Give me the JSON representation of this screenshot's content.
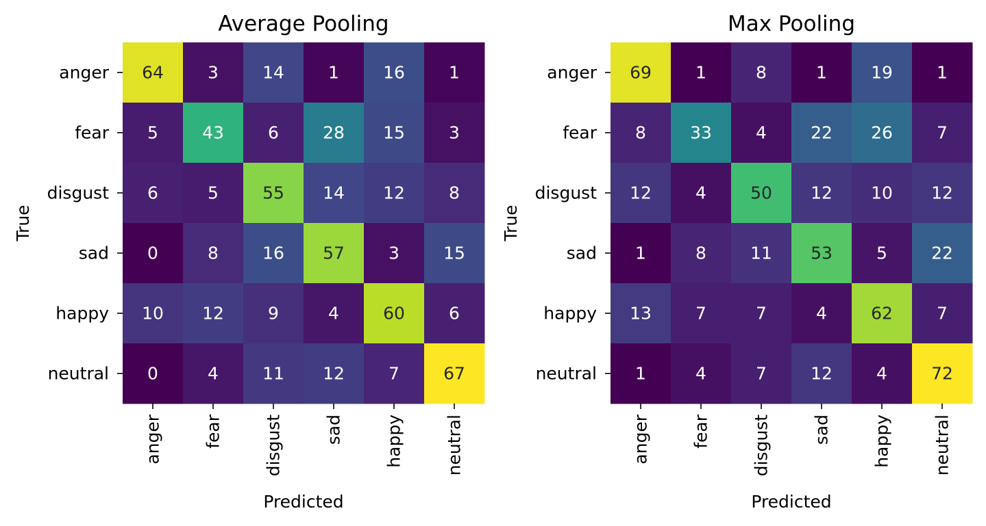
{
  "chart_data": [
    {
      "type": "heatmap",
      "title": "Average Pooling",
      "xlabel": "Predicted",
      "ylabel": "True",
      "x_categories": [
        "anger",
        "fear",
        "disgust",
        "sad",
        "happy",
        "neutral"
      ],
      "y_categories": [
        "anger",
        "fear",
        "disgust",
        "sad",
        "happy",
        "neutral"
      ],
      "colormap": "viridis",
      "color_range": [
        0,
        67
      ],
      "values": [
        [
          64,
          3,
          14,
          1,
          16,
          1
        ],
        [
          5,
          43,
          6,
          28,
          15,
          3
        ],
        [
          6,
          5,
          55,
          14,
          12,
          8
        ],
        [
          0,
          8,
          16,
          57,
          3,
          15
        ],
        [
          10,
          12,
          9,
          4,
          60,
          6
        ],
        [
          0,
          4,
          11,
          12,
          7,
          67
        ]
      ]
    },
    {
      "type": "heatmap",
      "title": "Max Pooling",
      "xlabel": "Predicted",
      "ylabel": "True",
      "x_categories": [
        "anger",
        "fear",
        "disgust",
        "sad",
        "happy",
        "neutral"
      ],
      "y_categories": [
        "anger",
        "fear",
        "disgust",
        "sad",
        "happy",
        "neutral"
      ],
      "colormap": "viridis",
      "color_range": [
        1,
        72
      ],
      "values": [
        [
          69,
          1,
          8,
          1,
          19,
          1
        ],
        [
          8,
          33,
          4,
          22,
          26,
          7
        ],
        [
          12,
          4,
          50,
          12,
          10,
          12
        ],
        [
          1,
          8,
          11,
          53,
          5,
          22
        ],
        [
          13,
          7,
          7,
          4,
          62,
          7
        ],
        [
          1,
          4,
          7,
          12,
          4,
          72
        ]
      ]
    }
  ]
}
